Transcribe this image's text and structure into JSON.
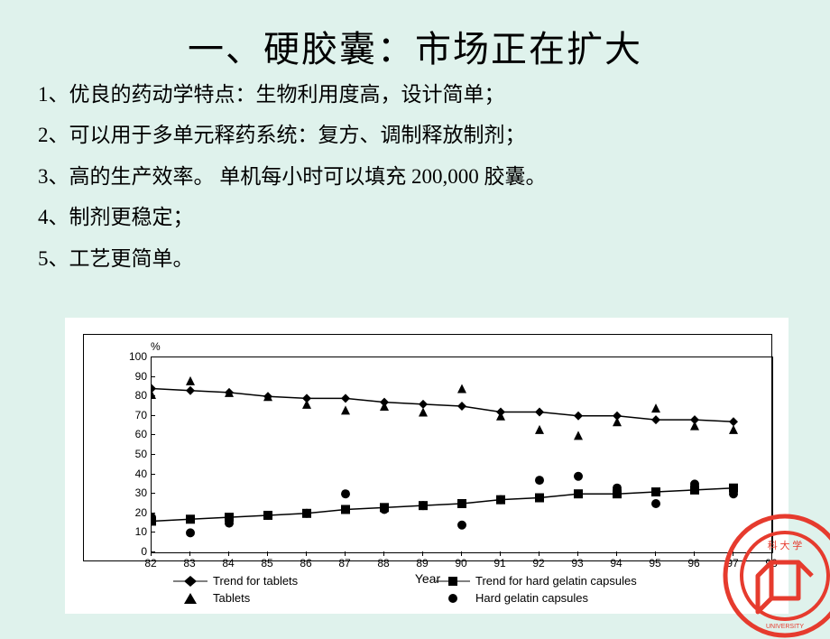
{
  "title": "一、硬胶囊：市场正在扩大",
  "bullets": [
    "1、优良的药动学特点：生物利用度高，设计简单；",
    "2、可以用于多单元释药系统：复方、调制释放制剂；",
    "3、高的生产效率。 单机每小时可以填充 200,000 胶囊。",
    "4、制剂更稳定；",
    "5、工艺更简单。"
  ],
  "chart": {
    "type": "scatter+line",
    "y_unit": "%",
    "xlabel": "Year",
    "ylim": [
      0,
      100
    ],
    "ytick_step": 10,
    "xlim": [
      82,
      98
    ],
    "xtick_step": 1,
    "yticks": [
      0,
      10,
      20,
      30,
      40,
      50,
      60,
      70,
      80,
      90,
      100
    ],
    "xticks": [
      82,
      83,
      84,
      85,
      86,
      87,
      88,
      89,
      90,
      91,
      92,
      93,
      94,
      95,
      96,
      97,
      98
    ],
    "background_color": "#ffffff",
    "axis_color": "#000000",
    "series": {
      "tablets_trend": {
        "label": "Trend for tablets",
        "marker": "diamond",
        "color": "#000000",
        "line": true,
        "points": [
          [
            82,
            84
          ],
          [
            83,
            83
          ],
          [
            84,
            82
          ],
          [
            85,
            80
          ],
          [
            86,
            79
          ],
          [
            87,
            79
          ],
          [
            88,
            77
          ],
          [
            89,
            76
          ],
          [
            90,
            75
          ],
          [
            91,
            72
          ],
          [
            92,
            72
          ],
          [
            93,
            70
          ],
          [
            94,
            70
          ],
          [
            95,
            68
          ],
          [
            96,
            68
          ],
          [
            97,
            67
          ]
        ]
      },
      "tablets": {
        "label": "Tablets",
        "marker": "triangle",
        "color": "#000000",
        "line": false,
        "points": [
          [
            82,
            81
          ],
          [
            83,
            88
          ],
          [
            84,
            82
          ],
          [
            85,
            80
          ],
          [
            86,
            76
          ],
          [
            87,
            73
          ],
          [
            88,
            75
          ],
          [
            89,
            72
          ],
          [
            90,
            84
          ],
          [
            91,
            70
          ],
          [
            92,
            63
          ],
          [
            93,
            60
          ],
          [
            94,
            67
          ],
          [
            95,
            74
          ],
          [
            96,
            65
          ],
          [
            97,
            63
          ]
        ]
      },
      "capsules_trend": {
        "label": "Trend for hard gelatin capsules",
        "marker": "square",
        "color": "#000000",
        "line": true,
        "points": [
          [
            82,
            16
          ],
          [
            83,
            17
          ],
          [
            84,
            18
          ],
          [
            85,
            19
          ],
          [
            86,
            20
          ],
          [
            87,
            22
          ],
          [
            88,
            23
          ],
          [
            89,
            24
          ],
          [
            90,
            25
          ],
          [
            91,
            27
          ],
          [
            92,
            28
          ],
          [
            93,
            30
          ],
          [
            94,
            30
          ],
          [
            95,
            31
          ],
          [
            96,
            32
          ],
          [
            97,
            33
          ]
        ]
      },
      "capsules": {
        "label": "Hard gelatin capsules",
        "marker": "circle",
        "color": "#000000",
        "line": false,
        "points": [
          [
            82,
            18
          ],
          [
            83,
            10
          ],
          [
            84,
            15
          ],
          [
            85,
            19
          ],
          [
            86,
            20
          ],
          [
            87,
            30
          ],
          [
            88,
            22
          ],
          [
            89,
            24
          ],
          [
            90,
            14
          ],
          [
            91,
            27
          ],
          [
            92,
            37
          ],
          [
            93,
            39
          ],
          [
            94,
            33
          ],
          [
            95,
            25
          ],
          [
            96,
            35
          ],
          [
            97,
            30
          ]
        ]
      }
    },
    "legend_order": [
      "tablets_trend",
      "capsules_trend",
      "tablets",
      "capsules"
    ]
  },
  "fonts": {
    "title_size": 40,
    "bullet_size": 23,
    "axis_size": 12,
    "legend_size": 13
  },
  "colors": {
    "page_bg": "#dff2ec",
    "chart_bg": "#ffffff",
    "text": "#000000",
    "logo_red": "#e63b2e"
  }
}
